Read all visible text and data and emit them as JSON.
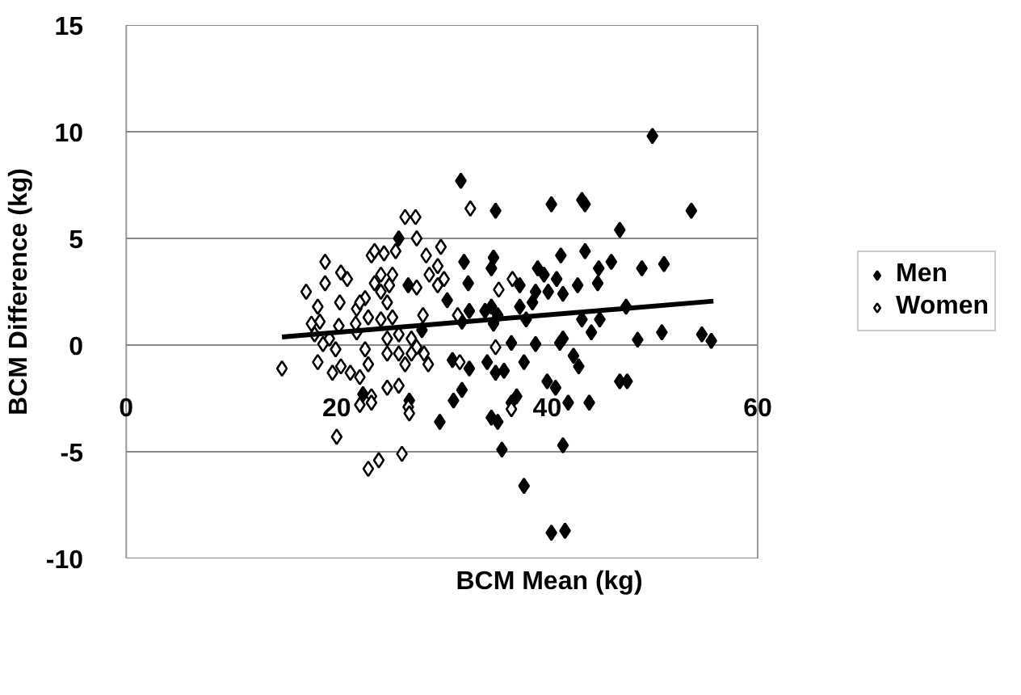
{
  "chart_data": {
    "type": "scatter",
    "xlabel": "BCM Mean (kg)",
    "ylabel": "BCM Difference (kg)",
    "xlim": [
      0,
      60
    ],
    "xticks": [
      0,
      20,
      40,
      60
    ],
    "ylim": [
      -10,
      15
    ],
    "yticks": [
      -10,
      -5,
      0,
      5,
      10,
      15
    ],
    "grid": "y",
    "legend": "right",
    "marker": "diamond",
    "series": [
      {
        "name": "Men",
        "color": "#000000",
        "x": [
          50.0,
          31.8,
          35.1,
          40.4,
          43.3,
          43.6,
          53.7,
          46.9,
          25.9,
          43.6,
          41.3,
          32.1,
          34.9,
          46.1,
          51.1,
          49.0,
          44.9,
          39.1,
          39.7,
          34.7,
          40.9,
          32.5,
          42.9,
          44.8,
          37.4,
          38.9,
          40.1,
          41.5,
          30.5,
          26.8,
          34.7,
          37.4,
          38.6,
          47.5,
          32.6,
          34.1,
          35.3,
          38.0,
          43.3,
          45.0,
          31.9,
          34.9,
          28.1,
          44.2,
          36.6,
          38.9,
          41.5,
          41.2,
          48.6,
          50.9,
          54.7,
          55.6,
          31.0,
          32.6,
          34.3,
          35.9,
          37.8,
          42.5,
          43.0,
          46.9,
          47.6,
          40.0,
          40.8,
          35.1,
          31.9,
          31.1,
          37.1,
          36.6,
          22.5,
          26.9,
          42.0,
          44.0,
          29.8,
          34.7,
          35.3,
          35.7,
          41.5,
          37.8,
          40.4,
          41.7
        ],
        "values": [
          9.8,
          7.7,
          6.3,
          6.6,
          6.8,
          6.6,
          6.3,
          5.4,
          5.0,
          4.4,
          4.2,
          3.9,
          4.1,
          3.9,
          3.8,
          3.6,
          3.6,
          3.6,
          3.3,
          3.6,
          3.1,
          2.9,
          2.8,
          2.9,
          2.8,
          2.5,
          2.5,
          2.4,
          2.1,
          2.8,
          1.8,
          1.8,
          2.0,
          1.8,
          1.6,
          1.6,
          1.4,
          1.2,
          1.2,
          1.2,
          1.1,
          1.0,
          0.7,
          0.6,
          0.1,
          0.05,
          0.3,
          0.1,
          0.25,
          0.6,
          0.5,
          0.2,
          -0.7,
          -1.1,
          -0.8,
          -1.2,
          -0.8,
          -0.5,
          -1.0,
          -1.7,
          -1.7,
          -1.7,
          -2.0,
          -1.3,
          -2.1,
          -2.6,
          -2.4,
          -2.7,
          -2.3,
          -2.6,
          -2.7,
          -2.7,
          -3.6,
          -3.4,
          -3.6,
          -4.9,
          -4.7,
          -6.6,
          -8.8,
          -8.7
        ]
      },
      {
        "name": "Women",
        "color": "#ffffff",
        "x": [
          14.8,
          17.1,
          18.9,
          18.9,
          18.2,
          17.6,
          18.4,
          20.4,
          21.0,
          20.3,
          21.9,
          19.3,
          19.9,
          18.7,
          20.2,
          18.2,
          20.4,
          21.3,
          22.2,
          21.9,
          23.0,
          22.7,
          23.0,
          22.7,
          23.3,
          23.6,
          24.5,
          23.6,
          24.2,
          25.0,
          24.8,
          24.2,
          25.3,
          24.8,
          25.9,
          24.8,
          25.9,
          26.5,
          25.6,
          26.5,
          27.5,
          27.6,
          28.5,
          28.8,
          29.9,
          29.6,
          30.2,
          29.6,
          27.6,
          28.2,
          27.1,
          27.6,
          28.3,
          28.7,
          27.1,
          24.8,
          25.9,
          23.3,
          23.3,
          22.2,
          26.8,
          26.9,
          20.0,
          23.0,
          24.0,
          26.2,
          32.7,
          31.5,
          31.7,
          36.7,
          35.4,
          35.1,
          36.6,
          19.6,
          17.9,
          21.8,
          22.2,
          24.2,
          25.3
        ],
        "values": [
          -1.1,
          2.5,
          3.9,
          2.9,
          1.8,
          1.0,
          1.1,
          3.4,
          3.1,
          2.0,
          1.7,
          0.3,
          -0.2,
          0.05,
          0.9,
          -0.8,
          -1.0,
          -1.3,
          -1.5,
          0.6,
          1.3,
          -0.2,
          -0.9,
          2.2,
          4.2,
          4.4,
          4.3,
          2.9,
          2.5,
          2.8,
          2.0,
          1.2,
          1.3,
          0.3,
          0.5,
          -0.4,
          -0.4,
          -0.9,
          4.4,
          6.0,
          6.0,
          5.0,
          4.2,
          3.3,
          4.6,
          3.7,
          3.1,
          2.8,
          2.7,
          1.4,
          0.3,
          -0.1,
          -0.4,
          -0.9,
          -0.4,
          -2.0,
          -1.9,
          -2.4,
          -2.7,
          -2.8,
          -2.9,
          -3.2,
          -4.3,
          -5.8,
          -5.4,
          -5.1,
          6.4,
          1.4,
          -0.8,
          3.1,
          2.6,
          -0.1,
          -3.0,
          -1.3,
          0.5,
          1.0,
          2.0,
          3.3,
          3.3
        ]
      },
      {
        "type": "line",
        "marker": "none",
        "color": "#000000",
        "x": [
          14.8,
          55.8
        ],
        "values": [
          0.38,
          2.06
        ]
      }
    ]
  }
}
